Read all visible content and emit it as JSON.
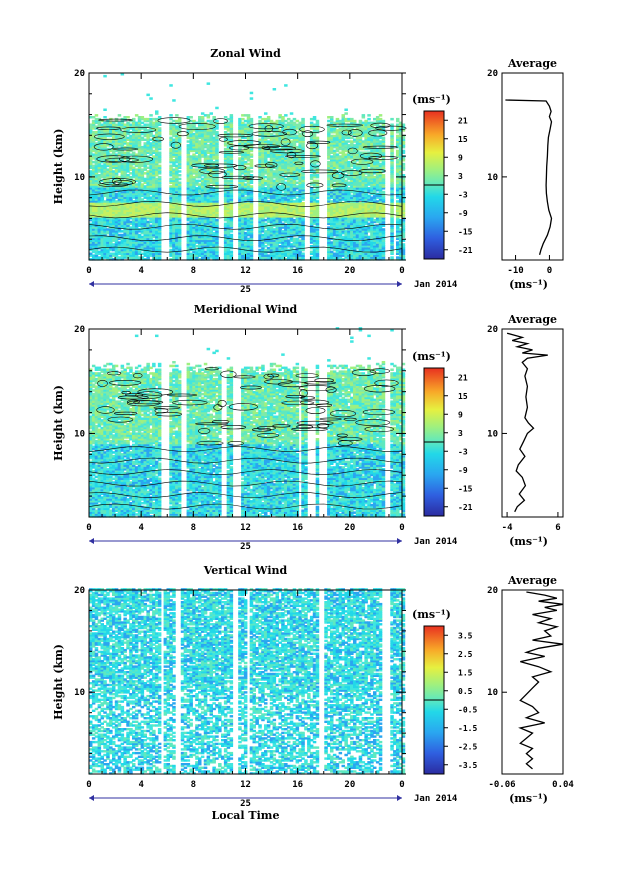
{
  "chart_data": [
    {
      "type": "heatmap",
      "title": "Zonal Wind",
      "ylabel": "Height (km)",
      "xlim": [
        0,
        24
      ],
      "ylim": [
        2,
        20
      ],
      "x_ticks": [
        "0",
        "4",
        "8",
        "12",
        "16",
        "20",
        "0"
      ],
      "y_ticks": [
        "10",
        "20"
      ],
      "date_center": "25",
      "date_label": "Jan 2014",
      "colorbar": {
        "unit": "(ms⁻¹)",
        "min": -24,
        "max": 24,
        "ticks": [
          "21",
          "15",
          "9",
          "3",
          "-3",
          "-9",
          "-15",
          "-21"
        ]
      },
      "profile": {
        "title": "Average",
        "xlabel": "(ms⁻¹)",
        "xlim": [
          -14,
          4
        ],
        "x_ticks": [
          "-10",
          "0"
        ],
        "y_ticks": [
          "10",
          "20"
        ],
        "points": [
          [
            -13,
            17.4
          ],
          [
            -1,
            17.3
          ],
          [
            0,
            16.8
          ],
          [
            0.5,
            16.3
          ],
          [
            0,
            15.8
          ],
          [
            0.6,
            15.3
          ],
          [
            0.2,
            14.6
          ],
          [
            -0.3,
            13.8
          ],
          [
            -0.5,
            13
          ],
          [
            -0.6,
            12
          ],
          [
            -0.8,
            11
          ],
          [
            -0.9,
            10
          ],
          [
            -1,
            9.2
          ],
          [
            -0.9,
            8.4
          ],
          [
            -0.6,
            7.6
          ],
          [
            -0.2,
            6.8
          ],
          [
            0.6,
            6
          ],
          [
            0.2,
            5.2
          ],
          [
            -0.6,
            4.4
          ],
          [
            -1.8,
            3.6
          ],
          [
            -2.5,
            3
          ],
          [
            -2.9,
            2.5
          ]
        ]
      }
    },
    {
      "type": "heatmap",
      "title": "Meridional Wind",
      "ylabel": "Height (km)",
      "xlim": [
        0,
        24
      ],
      "ylim": [
        2,
        20
      ],
      "x_ticks": [
        "0",
        "4",
        "8",
        "12",
        "16",
        "20",
        "0"
      ],
      "y_ticks": [
        "10",
        "20"
      ],
      "date_center": "25",
      "date_label": "Jan 2014",
      "colorbar": {
        "unit": "(ms⁻¹)",
        "min": -24,
        "max": 24,
        "ticks": [
          "21",
          "15",
          "9",
          "3",
          "-3",
          "-9",
          "-15",
          "-21"
        ]
      },
      "profile": {
        "title": "Average",
        "xlabel": "(ms⁻¹)",
        "xlim": [
          -5,
          7
        ],
        "x_ticks": [
          "-4",
          "6"
        ],
        "y_ticks": [
          "10",
          "20"
        ],
        "points": [
          [
            -4,
            19.6
          ],
          [
            -1,
            19.2
          ],
          [
            -3,
            18.9
          ],
          [
            0,
            18.6
          ],
          [
            -2,
            18.3
          ],
          [
            1,
            18
          ],
          [
            -1,
            17.7
          ],
          [
            4,
            17.5
          ],
          [
            0,
            17.2
          ],
          [
            -1,
            16.8
          ],
          [
            0,
            16.2
          ],
          [
            -0.5,
            15.5
          ],
          [
            0,
            14.5
          ],
          [
            -0.3,
            13.5
          ],
          [
            0,
            12.5
          ],
          [
            -0.5,
            11.5
          ],
          [
            0.2,
            11
          ],
          [
            1.2,
            10.5
          ],
          [
            0,
            10
          ],
          [
            -0.8,
            9.2
          ],
          [
            -1.5,
            8.5
          ],
          [
            -0.5,
            7.8
          ],
          [
            -1.8,
            7
          ],
          [
            -2.2,
            6.4
          ],
          [
            -1,
            5.8
          ],
          [
            -0.4,
            5
          ],
          [
            -1.6,
            4.2
          ],
          [
            -0.6,
            3.6
          ],
          [
            -2,
            3
          ],
          [
            -2.5,
            2.5
          ]
        ]
      }
    },
    {
      "type": "heatmap",
      "title": "Vertical Wind",
      "ylabel": "Height (km)",
      "xlabel": "Local Time",
      "xlim": [
        0,
        24
      ],
      "ylim": [
        2,
        20
      ],
      "x_ticks": [
        "0",
        "4",
        "8",
        "12",
        "16",
        "20",
        "0"
      ],
      "y_ticks": [
        "10",
        "20"
      ],
      "date_center": "25",
      "date_label": "Jan 2014",
      "colorbar": {
        "unit": "(ms⁻¹)",
        "min": -4,
        "max": 4,
        "ticks": [
          "3.5",
          "2.5",
          "1.5",
          "0.5",
          "-0.5",
          "-1.5",
          "-2.5",
          "-3.5"
        ]
      },
      "profile": {
        "title": "Average",
        "xlabel": "(ms⁻¹)",
        "xlim": [
          -0.06,
          0.04
        ],
        "x_ticks": [
          "-0.06",
          "0.04"
        ],
        "y_ticks": [
          "10",
          "20"
        ],
        "points": [
          [
            -0.02,
            19.8
          ],
          [
            0.01,
            19.5
          ],
          [
            0.03,
            19.2
          ],
          [
            0.0,
            18.9
          ],
          [
            0.04,
            18.6
          ],
          [
            0.01,
            18.3
          ],
          [
            0.03,
            18
          ],
          [
            -0.01,
            17.6
          ],
          [
            0.02,
            17.2
          ],
          [
            0.0,
            16.8
          ],
          [
            0.03,
            16.4
          ],
          [
            0.01,
            16
          ],
          [
            0.02,
            15.5
          ],
          [
            -0.01,
            15.1
          ],
          [
            0.04,
            14.7
          ],
          [
            0.0,
            14.3
          ],
          [
            -0.02,
            13.9
          ],
          [
            0.01,
            13.5
          ],
          [
            -0.03,
            13
          ],
          [
            0.0,
            12.5
          ],
          [
            0.02,
            12
          ],
          [
            -0.01,
            11.5
          ],
          [
            0.0,
            11
          ],
          [
            -0.01,
            10.4
          ],
          [
            -0.02,
            9.8
          ],
          [
            -0.03,
            9.2
          ],
          [
            -0.01,
            8.6
          ],
          [
            0.0,
            8
          ],
          [
            -0.02,
            7.5
          ],
          [
            0.01,
            7
          ],
          [
            -0.03,
            6.5
          ],
          [
            -0.01,
            6
          ],
          [
            -0.02,
            5.5
          ],
          [
            -0.03,
            5
          ],
          [
            -0.01,
            4.5
          ],
          [
            -0.02,
            4
          ],
          [
            -0.01,
            3.5
          ],
          [
            -0.02,
            3
          ],
          [
            -0.01,
            2.5
          ]
        ]
      }
    }
  ]
}
